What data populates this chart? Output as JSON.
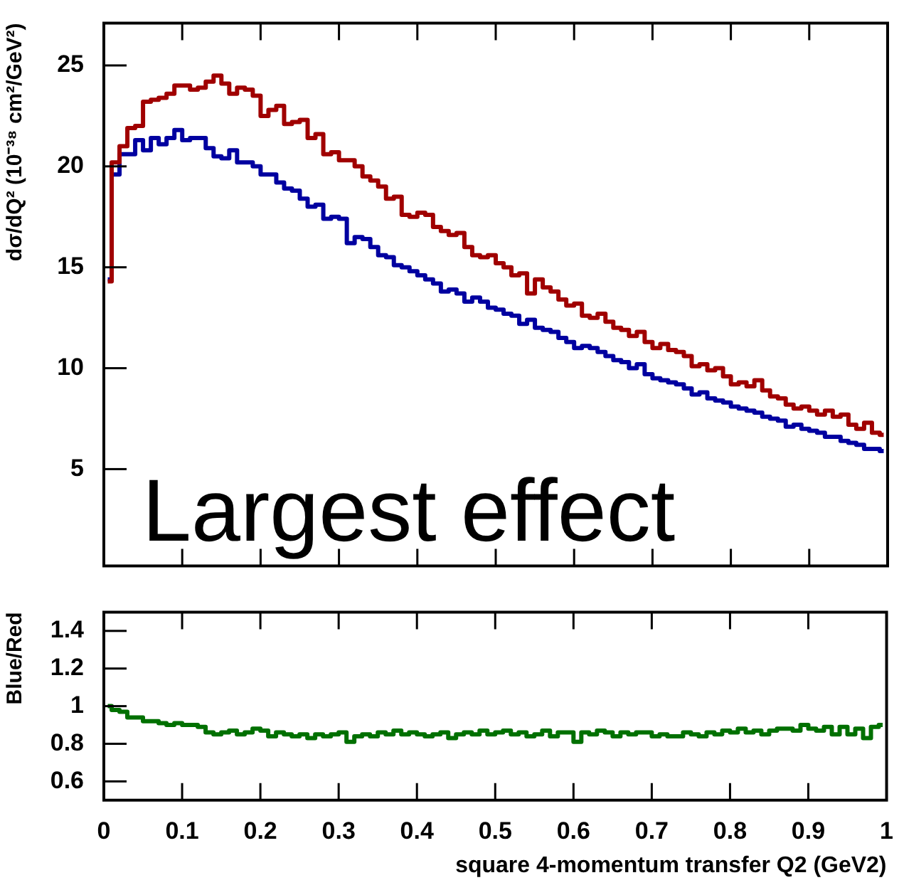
{
  "chart_data": [
    {
      "type": "step",
      "ylabel": "dσ/dQ² (10⁻³⁸ cm²/GeV²)",
      "annotations": [
        "Largest effect"
      ],
      "legend": false,
      "tick_labels": "y",
      "x": [
        0.005,
        0.015,
        0.025,
        0.035,
        0.045,
        0.055,
        0.065,
        0.075,
        0.085,
        0.095,
        0.105,
        0.115,
        0.125,
        0.135,
        0.145,
        0.155,
        0.165,
        0.175,
        0.185,
        0.195,
        0.205,
        0.215,
        0.225,
        0.235,
        0.245,
        0.255,
        0.265,
        0.275,
        0.285,
        0.295,
        0.305,
        0.315,
        0.325,
        0.335,
        0.345,
        0.355,
        0.365,
        0.375,
        0.385,
        0.395,
        0.405,
        0.415,
        0.425,
        0.435,
        0.445,
        0.455,
        0.465,
        0.475,
        0.485,
        0.495,
        0.505,
        0.515,
        0.525,
        0.535,
        0.545,
        0.555,
        0.565,
        0.575,
        0.585,
        0.595,
        0.605,
        0.615,
        0.625,
        0.635,
        0.645,
        0.655,
        0.665,
        0.675,
        0.685,
        0.695,
        0.705,
        0.715,
        0.725,
        0.735,
        0.745,
        0.755,
        0.765,
        0.775,
        0.785,
        0.795,
        0.805,
        0.815,
        0.825,
        0.835,
        0.845,
        0.855,
        0.865,
        0.875,
        0.885,
        0.895,
        0.905,
        0.915,
        0.925,
        0.935,
        0.945,
        0.955,
        0.965,
        0.975,
        0.985,
        0.995
      ],
      "series": [
        {
          "color": "#a00000",
          "values": [
            14.3,
            20.2,
            21.0,
            21.9,
            22.0,
            23.2,
            23.3,
            23.4,
            23.6,
            24.0,
            24.0,
            23.8,
            23.9,
            24.2,
            24.5,
            24.1,
            23.6,
            23.9,
            23.8,
            23.5,
            22.5,
            22.8,
            23.0,
            22.1,
            22.2,
            22.3,
            21.4,
            21.6,
            20.6,
            20.7,
            20.3,
            20.3,
            20.0,
            19.5,
            19.3,
            19.0,
            18.4,
            18.5,
            17.6,
            17.5,
            17.7,
            17.6,
            17.0,
            16.8,
            16.6,
            16.7,
            16.0,
            15.6,
            15.5,
            15.6,
            15.2,
            15.0,
            14.6,
            14.7,
            13.7,
            14.4,
            14.0,
            13.8,
            13.4,
            13.1,
            13.2,
            12.6,
            12.5,
            12.7,
            12.3,
            12.0,
            11.9,
            11.6,
            11.8,
            11.3,
            11.0,
            11.2,
            10.9,
            10.8,
            10.6,
            10.1,
            10.2,
            9.9,
            10.0,
            9.6,
            9.2,
            9.3,
            9.1,
            9.4,
            8.9,
            8.6,
            8.5,
            8.2,
            8.0,
            8.1,
            7.9,
            7.7,
            7.9,
            7.6,
            7.7,
            7.2,
            7.0,
            7.3,
            6.8,
            6.7
          ]
        },
        {
          "color": "#0000a0",
          "values": [
            14.4,
            19.6,
            20.6,
            20.6,
            21.3,
            20.8,
            21.4,
            21.1,
            21.4,
            21.8,
            21.3,
            21.4,
            21.4,
            20.9,
            20.5,
            20.4,
            20.8,
            20.2,
            20.2,
            20.0,
            19.6,
            19.6,
            19.2,
            18.9,
            18.8,
            18.4,
            18.0,
            18.1,
            17.4,
            17.5,
            17.4,
            16.2,
            16.5,
            16.4,
            16.0,
            15.6,
            15.5,
            15.1,
            15.0,
            14.8,
            14.6,
            14.4,
            14.2,
            13.8,
            13.9,
            13.7,
            13.3,
            13.5,
            13.3,
            13.0,
            12.9,
            12.7,
            12.6,
            12.2,
            12.4,
            12.0,
            11.9,
            11.8,
            11.5,
            11.3,
            11.0,
            11.1,
            11.0,
            10.8,
            10.6,
            10.4,
            10.3,
            10.0,
            10.2,
            9.7,
            9.5,
            9.4,
            9.3,
            9.2,
            9.0,
            8.7,
            8.8,
            8.5,
            8.4,
            8.3,
            8.1,
            8.0,
            7.9,
            7.8,
            7.6,
            7.5,
            7.4,
            7.1,
            7.2,
            7.0,
            6.9,
            6.8,
            6.6,
            6.6,
            6.4,
            6.3,
            6.2,
            6.0,
            6.0,
            5.9
          ]
        }
      ],
      "xlim": [
        0,
        1
      ],
      "xticks": [
        0,
        0.1,
        0.2,
        0.3,
        0.4,
        0.5,
        0.6,
        0.7,
        0.8,
        0.9,
        1
      ],
      "ylim": [
        0.2,
        27.1
      ],
      "yticks": [
        5,
        10,
        15,
        20,
        25
      ]
    },
    {
      "type": "step",
      "xlabel": "square 4-momentum transfer Q2 (GeV2)",
      "ylabel": "Blue/Red",
      "legend": false,
      "x": [
        0.005,
        0.015,
        0.025,
        0.035,
        0.045,
        0.055,
        0.065,
        0.075,
        0.085,
        0.095,
        0.105,
        0.115,
        0.125,
        0.135,
        0.145,
        0.155,
        0.165,
        0.175,
        0.185,
        0.195,
        0.205,
        0.215,
        0.225,
        0.235,
        0.245,
        0.255,
        0.265,
        0.275,
        0.285,
        0.295,
        0.305,
        0.315,
        0.325,
        0.335,
        0.345,
        0.355,
        0.365,
        0.375,
        0.385,
        0.395,
        0.405,
        0.415,
        0.425,
        0.435,
        0.445,
        0.455,
        0.465,
        0.475,
        0.485,
        0.495,
        0.505,
        0.515,
        0.525,
        0.535,
        0.545,
        0.555,
        0.565,
        0.575,
        0.585,
        0.595,
        0.605,
        0.615,
        0.625,
        0.635,
        0.645,
        0.655,
        0.665,
        0.675,
        0.685,
        0.695,
        0.705,
        0.715,
        0.725,
        0.735,
        0.745,
        0.755,
        0.765,
        0.775,
        0.785,
        0.795,
        0.805,
        0.815,
        0.825,
        0.835,
        0.845,
        0.855,
        0.865,
        0.875,
        0.885,
        0.895,
        0.905,
        0.915,
        0.925,
        0.935,
        0.945,
        0.955,
        0.965,
        0.975,
        0.985,
        0.995
      ],
      "series": [
        {
          "color": "#007000",
          "values": [
            1.0,
            0.98,
            0.97,
            0.94,
            0.94,
            0.92,
            0.92,
            0.91,
            0.9,
            0.91,
            0.9,
            0.9,
            0.89,
            0.86,
            0.85,
            0.86,
            0.87,
            0.85,
            0.86,
            0.88,
            0.87,
            0.84,
            0.86,
            0.85,
            0.84,
            0.85,
            0.83,
            0.85,
            0.84,
            0.85,
            0.86,
            0.81,
            0.84,
            0.85,
            0.84,
            0.86,
            0.85,
            0.87,
            0.85,
            0.86,
            0.85,
            0.84,
            0.85,
            0.86,
            0.83,
            0.85,
            0.86,
            0.85,
            0.87,
            0.85,
            0.86,
            0.87,
            0.85,
            0.86,
            0.84,
            0.85,
            0.87,
            0.84,
            0.86,
            0.86,
            0.81,
            0.86,
            0.85,
            0.87,
            0.86,
            0.84,
            0.86,
            0.85,
            0.86,
            0.86,
            0.84,
            0.85,
            0.84,
            0.84,
            0.86,
            0.85,
            0.84,
            0.86,
            0.85,
            0.87,
            0.86,
            0.88,
            0.86,
            0.87,
            0.85,
            0.87,
            0.88,
            0.88,
            0.87,
            0.9,
            0.88,
            0.87,
            0.89,
            0.85,
            0.89,
            0.85,
            0.88,
            0.83,
            0.89,
            0.9
          ]
        }
      ],
      "xlim": [
        0,
        1
      ],
      "xticks": [
        0,
        0.1,
        0.2,
        0.3,
        0.4,
        0.5,
        0.6,
        0.7,
        0.8,
        0.9,
        1
      ],
      "ylim": [
        0.5,
        1.5
      ],
      "yticks": [
        0.6,
        0.8,
        1,
        1.2,
        1.4
      ]
    }
  ]
}
